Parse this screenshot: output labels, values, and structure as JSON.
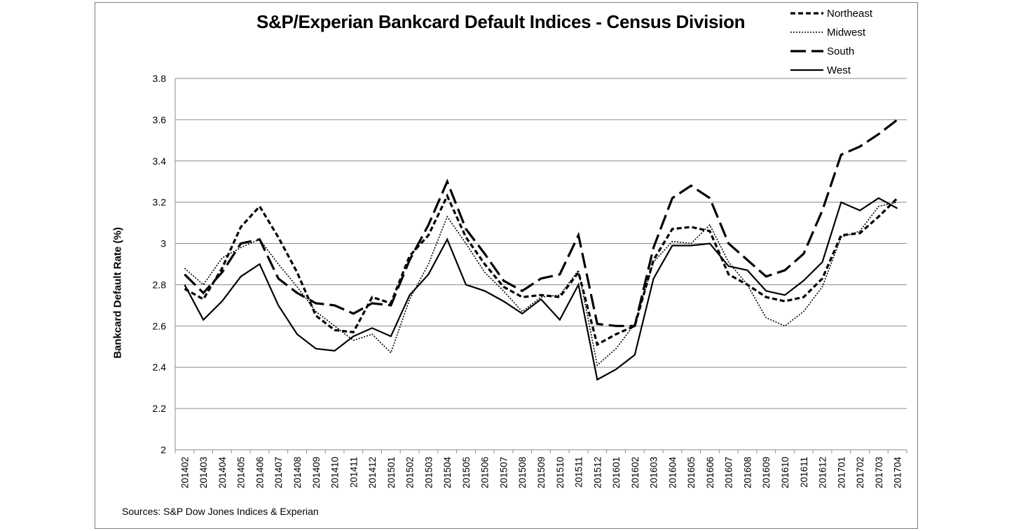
{
  "chart_data": {
    "type": "line",
    "title": "S&P/Experian Bankcard Default Indices - Census Division",
    "xlabel": "",
    "ylabel": "Bankcard Default Rate (%)",
    "ylim": [
      2,
      3.8
    ],
    "yticks": [
      "2",
      "2.2",
      "2.4",
      "2.6",
      "2.8",
      "3",
      "3.2",
      "3.4",
      "3.6",
      "3.8"
    ],
    "grid": "horizontal",
    "legend_position": "top-right",
    "categories": [
      "201402",
      "201403",
      "201404",
      "201405",
      "201406",
      "201407",
      "201408",
      "201409",
      "201410",
      "201411",
      "201412",
      "201501",
      "201502",
      "201503",
      "201504",
      "201505",
      "201506",
      "201507",
      "201508",
      "201509",
      "201510",
      "201511",
      "201512",
      "201601",
      "201602",
      "201603",
      "201604",
      "201605",
      "201606",
      "201607",
      "201608",
      "201609",
      "201610",
      "201611",
      "201612",
      "201701",
      "201702",
      "201703",
      "201704"
    ],
    "series": [
      {
        "name": "Northeast",
        "dash": "dash",
        "color": "#000000",
        "values": [
          2.78,
          2.73,
          2.88,
          3.08,
          3.18,
          3.03,
          2.86,
          2.65,
          2.58,
          2.57,
          2.74,
          2.71,
          2.94,
          3.04,
          3.23,
          3.03,
          2.9,
          2.79,
          2.74,
          2.75,
          2.74,
          2.86,
          2.51,
          2.56,
          2.6,
          2.92,
          3.07,
          3.08,
          3.06,
          2.85,
          2.8,
          2.74,
          2.72,
          2.74,
          2.83,
          3.04,
          3.05,
          3.13,
          3.22
        ]
      },
      {
        "name": "Midwest",
        "dash": "dot",
        "color": "#000000",
        "values": [
          2.88,
          2.8,
          2.93,
          2.98,
          3.02,
          2.9,
          2.79,
          2.67,
          2.6,
          2.53,
          2.56,
          2.47,
          2.73,
          2.9,
          3.13,
          3.0,
          2.86,
          2.77,
          2.67,
          2.74,
          2.75,
          2.87,
          2.41,
          2.49,
          2.61,
          2.91,
          3.01,
          3.0,
          3.09,
          2.91,
          2.8,
          2.64,
          2.6,
          2.67,
          2.79,
          3.03,
          3.06,
          3.18,
          3.2
        ]
      },
      {
        "name": "South",
        "dash": "longdash",
        "color": "#000000",
        "values": [
          2.85,
          2.76,
          2.86,
          3.0,
          3.02,
          2.83,
          2.76,
          2.71,
          2.7,
          2.66,
          2.71,
          2.7,
          2.92,
          3.09,
          3.3,
          3.07,
          2.95,
          2.82,
          2.77,
          2.83,
          2.85,
          3.04,
          2.61,
          2.6,
          2.6,
          2.98,
          3.22,
          3.28,
          3.22,
          3.0,
          2.92,
          2.84,
          2.87,
          2.95,
          3.16,
          3.43,
          3.47,
          3.53,
          3.6
        ]
      },
      {
        "name": "West",
        "dash": "solid",
        "color": "#000000",
        "values": [
          2.8,
          2.63,
          2.72,
          2.84,
          2.9,
          2.7,
          2.56,
          2.49,
          2.48,
          2.55,
          2.59,
          2.55,
          2.75,
          2.85,
          3.02,
          2.8,
          2.77,
          2.72,
          2.66,
          2.73,
          2.63,
          2.8,
          2.34,
          2.39,
          2.46,
          2.83,
          2.99,
          2.99,
          3.0,
          2.89,
          2.87,
          2.77,
          2.75,
          2.82,
          2.91,
          3.2,
          3.16,
          3.22,
          3.17
        ]
      }
    ],
    "source_note": "Sources: S&P Dow Jones Indices & Experian"
  }
}
